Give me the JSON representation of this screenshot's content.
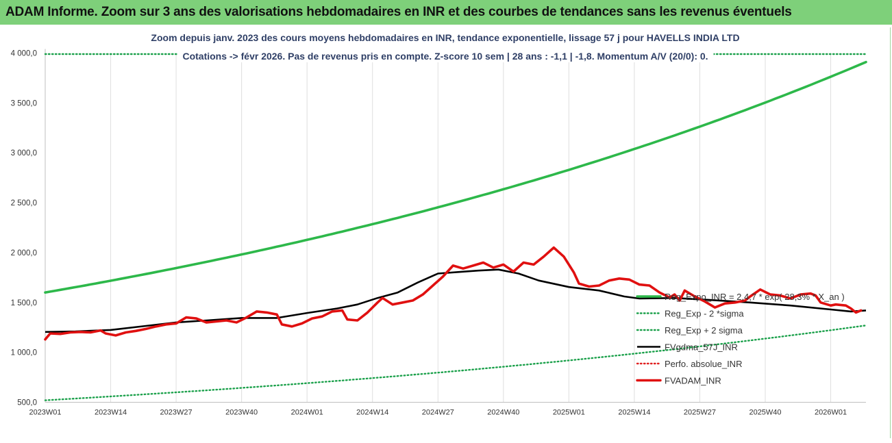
{
  "banner": {
    "title": "ADAM Informe. Zoom sur 3 ans des valorisations hebdomadaires en INR et des courbes de tendances sans les revenus éventuels",
    "color": "#7ed07a"
  },
  "chart_data": {
    "type": "line",
    "title": "Zoom depuis janv. 2023 des cours moyens hebdomadaires en INR, tendance exponentielle, lissage 57 j pour HAVELLS INDIA LTD",
    "subtitle": "Cotations -> févr 2026.  Pas de revenus pris en compte. Z-score 10 sem | 28 ans : -1,1 | -1,8. Momentum A/V (20/0): 0.",
    "xlabel": "",
    "ylabel": "",
    "ylim": [
      500,
      4000
    ],
    "yticks": [
      "500,0",
      "1 000,0",
      "1 500,0",
      "2 000,0",
      "2 500,0",
      "3 000,0",
      "3 500,0",
      "4 000,0"
    ],
    "ytick_values": [
      500,
      1000,
      1500,
      2000,
      2500,
      3000,
      3500,
      4000
    ],
    "xticks": [
      "2023W01",
      "2023W14",
      "2023W27",
      "2023W40",
      "2024W01",
      "2024W14",
      "2024W27",
      "2024W40",
      "2025W01",
      "2025W14",
      "2025W27",
      "2025W40",
      "2026W01"
    ],
    "xtick_positions": [
      0,
      13,
      26,
      39,
      52,
      65,
      78,
      91,
      104,
      117,
      130,
      143,
      156
    ],
    "x_count": 164,
    "grid": "vertical",
    "legend_placement": "bottom-right",
    "series": [
      {
        "name": "Reg_Expo_INR = 2,4,7 * exp( 28,3% * X_an )",
        "color": "#2db84a",
        "style": "solid-thick",
        "kind": "exp",
        "start": 1600,
        "end": 3910
      },
      {
        "name": "Reg_Exp - 2 *sigma",
        "color": "#1aa04a",
        "style": "dotted",
        "kind": "exp",
        "start": 520,
        "end": 1270
      },
      {
        "name": "Reg_Exp + 2 sigma",
        "color": "#1aa04a",
        "style": "dotted",
        "kind": "const",
        "value": 3990
      },
      {
        "name": "FVgdma_57J_INR",
        "color": "#000000",
        "style": "solid",
        "kind": "points",
        "points": [
          [
            0,
            1205
          ],
          [
            6,
            1210
          ],
          [
            13,
            1225
          ],
          [
            20,
            1265
          ],
          [
            26,
            1300
          ],
          [
            32,
            1320
          ],
          [
            39,
            1345
          ],
          [
            46,
            1345
          ],
          [
            52,
            1395
          ],
          [
            58,
            1440
          ],
          [
            62,
            1480
          ],
          [
            66,
            1545
          ],
          [
            70,
            1600
          ],
          [
            74,
            1700
          ],
          [
            78,
            1790
          ],
          [
            82,
            1805
          ],
          [
            86,
            1820
          ],
          [
            90,
            1830
          ],
          [
            94,
            1790
          ],
          [
            98,
            1720
          ],
          [
            104,
            1655
          ],
          [
            110,
            1620
          ],
          [
            115,
            1560
          ],
          [
            118,
            1540
          ],
          [
            125,
            1545
          ],
          [
            132,
            1525
          ],
          [
            140,
            1500
          ],
          [
            148,
            1470
          ],
          [
            156,
            1430
          ],
          [
            160,
            1410
          ],
          [
            163,
            1420
          ]
        ]
      },
      {
        "name": "Perfo. absolue_INR",
        "color": "#e02020",
        "style": "dotted",
        "kind": "none"
      },
      {
        "name": "FVADAM_INR",
        "color": "#e01010",
        "style": "solid-thick",
        "kind": "points",
        "points": [
          [
            0,
            1130
          ],
          [
            1,
            1190
          ],
          [
            3,
            1185
          ],
          [
            5,
            1200
          ],
          [
            7,
            1205
          ],
          [
            9,
            1200
          ],
          [
            11,
            1220
          ],
          [
            12,
            1190
          ],
          [
            14,
            1170
          ],
          [
            16,
            1200
          ],
          [
            18,
            1215
          ],
          [
            20,
            1235
          ],
          [
            22,
            1260
          ],
          [
            24,
            1280
          ],
          [
            26,
            1290
          ],
          [
            28,
            1350
          ],
          [
            30,
            1340
          ],
          [
            32,
            1300
          ],
          [
            34,
            1310
          ],
          [
            36,
            1320
          ],
          [
            38,
            1300
          ],
          [
            40,
            1350
          ],
          [
            42,
            1410
          ],
          [
            44,
            1400
          ],
          [
            46,
            1380
          ],
          [
            47,
            1280
          ],
          [
            49,
            1260
          ],
          [
            51,
            1290
          ],
          [
            53,
            1340
          ],
          [
            55,
            1360
          ],
          [
            57,
            1410
          ],
          [
            59,
            1420
          ],
          [
            60,
            1330
          ],
          [
            62,
            1320
          ],
          [
            64,
            1400
          ],
          [
            66,
            1500
          ],
          [
            67,
            1545
          ],
          [
            69,
            1480
          ],
          [
            71,
            1500
          ],
          [
            73,
            1520
          ],
          [
            75,
            1580
          ],
          [
            77,
            1670
          ],
          [
            79,
            1760
          ],
          [
            81,
            1870
          ],
          [
            83,
            1840
          ],
          [
            85,
            1870
          ],
          [
            87,
            1900
          ],
          [
            89,
            1850
          ],
          [
            91,
            1880
          ],
          [
            93,
            1810
          ],
          [
            95,
            1900
          ],
          [
            97,
            1880
          ],
          [
            99,
            1960
          ],
          [
            101,
            2050
          ],
          [
            103,
            1960
          ],
          [
            105,
            1800
          ],
          [
            106,
            1690
          ],
          [
            108,
            1660
          ],
          [
            110,
            1670
          ],
          [
            112,
            1720
          ],
          [
            114,
            1740
          ],
          [
            116,
            1730
          ],
          [
            118,
            1680
          ],
          [
            120,
            1670
          ],
          [
            122,
            1600
          ],
          [
            124,
            1550
          ],
          [
            125,
            1580
          ],
          [
            126,
            1520
          ],
          [
            127,
            1620
          ],
          [
            129,
            1560
          ],
          [
            131,
            1510
          ],
          [
            133,
            1450
          ],
          [
            135,
            1490
          ],
          [
            137,
            1500
          ],
          [
            139,
            1520
          ],
          [
            140,
            1560
          ],
          [
            142,
            1630
          ],
          [
            144,
            1580
          ],
          [
            146,
            1570
          ],
          [
            148,
            1540
          ],
          [
            150,
            1580
          ],
          [
            152,
            1590
          ],
          [
            153,
            1570
          ],
          [
            154,
            1500
          ],
          [
            156,
            1470
          ],
          [
            157,
            1480
          ],
          [
            159,
            1470
          ],
          [
            160,
            1440
          ],
          [
            161,
            1400
          ],
          [
            162,
            1420
          ]
        ]
      }
    ]
  }
}
